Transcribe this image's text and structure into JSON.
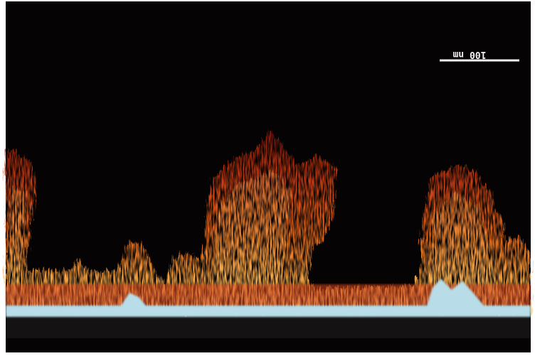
{
  "scale_bar": {
    "label": "100 nm"
  }
}
